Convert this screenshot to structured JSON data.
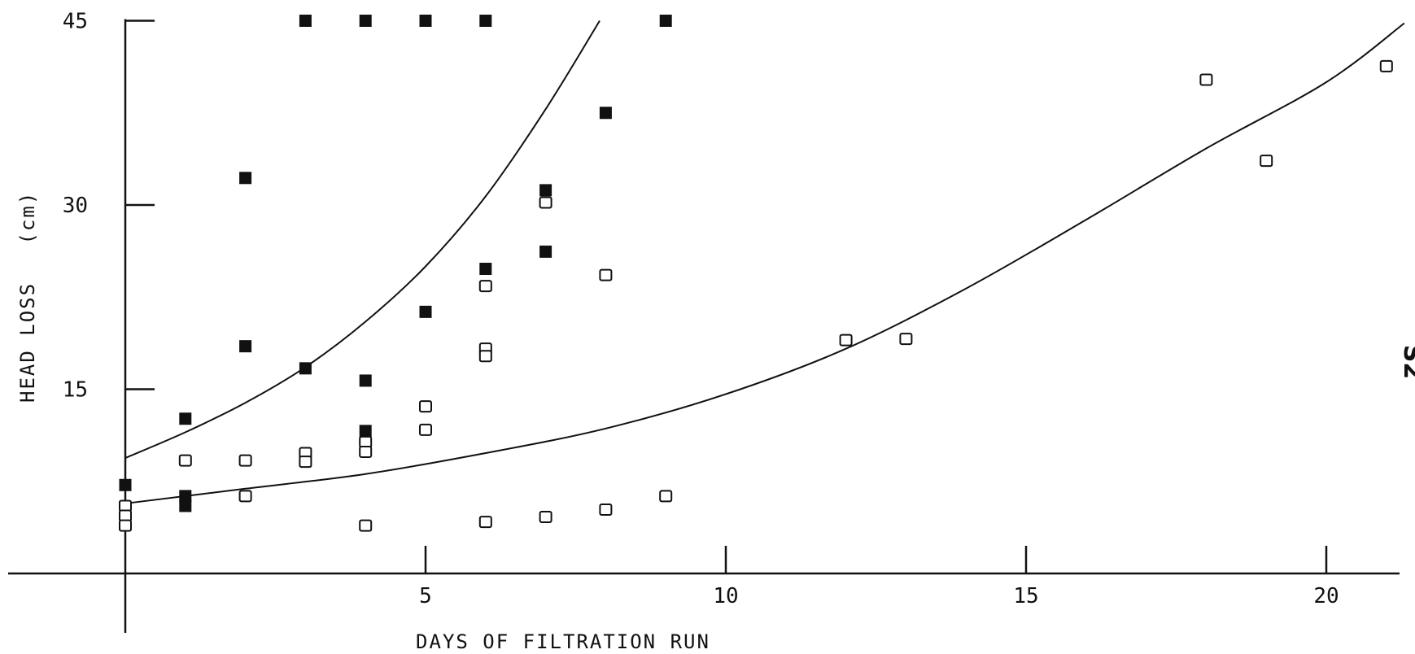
{
  "chart_data": {
    "type": "scatter",
    "title": "",
    "xlabel": "DAYS OF FILTRATION RUN",
    "ylabel": "HEAD LOSS",
    "ylabel_unit": "(cm)",
    "xlim": [
      0,
      20
    ],
    "ylim": [
      0,
      45
    ],
    "x_ticks": [
      5,
      10,
      15,
      20
    ],
    "x_tick_labels": [
      "5",
      "10",
      "15",
      "20"
    ],
    "y_ticks": [
      15,
      30,
      45
    ],
    "y_tick_labels": [
      "15",
      "30",
      "45"
    ],
    "grid": false,
    "legend": "none",
    "side_mark": "S2",
    "series": [
      {
        "marker": "filled-square",
        "points": [
          {
            "x": 0,
            "y": 7.2
          },
          {
            "x": 1,
            "y": 12.6
          },
          {
            "x": 1,
            "y": 6.3
          },
          {
            "x": 1,
            "y": 5.5
          },
          {
            "x": 2,
            "y": 32.2
          },
          {
            "x": 2,
            "y": 18.5
          },
          {
            "x": 3,
            "y": 45
          },
          {
            "x": 3,
            "y": 16.7
          },
          {
            "x": 4,
            "y": 45
          },
          {
            "x": 4,
            "y": 15.7
          },
          {
            "x": 4,
            "y": 11.6
          },
          {
            "x": 5,
            "y": 45
          },
          {
            "x": 5,
            "y": 21.3
          },
          {
            "x": 6,
            "y": 45
          },
          {
            "x": 6,
            "y": 24.8
          },
          {
            "x": 7,
            "y": 31.2
          },
          {
            "x": 7,
            "y": 26.2
          },
          {
            "x": 8,
            "y": 37.5
          },
          {
            "x": 9,
            "y": 45
          }
        ]
      },
      {
        "marker": "open-square",
        "points": [
          {
            "x": 0,
            "y": 5.5
          },
          {
            "x": 0,
            "y": 4.7
          },
          {
            "x": 0,
            "y": 3.9
          },
          {
            "x": 1,
            "y": 9.2
          },
          {
            "x": 2,
            "y": 9.2
          },
          {
            "x": 2,
            "y": 6.3
          },
          {
            "x": 3,
            "y": 9.8
          },
          {
            "x": 3,
            "y": 9.1
          },
          {
            "x": 4,
            "y": 10.7
          },
          {
            "x": 4,
            "y": 9.9
          },
          {
            "x": 4,
            "y": 3.9
          },
          {
            "x": 5,
            "y": 13.6
          },
          {
            "x": 5,
            "y": 11.7
          },
          {
            "x": 6,
            "y": 23.4
          },
          {
            "x": 6,
            "y": 18.3
          },
          {
            "x": 6,
            "y": 17.7
          },
          {
            "x": 6,
            "y": 4.2
          },
          {
            "x": 7,
            "y": 30.2
          },
          {
            "x": 7,
            "y": 4.6
          },
          {
            "x": 8,
            "y": 24.3
          },
          {
            "x": 8,
            "y": 5.2
          },
          {
            "x": 9,
            "y": 6.3
          },
          {
            "x": 12,
            "y": 19.0
          },
          {
            "x": 13,
            "y": 19.1
          },
          {
            "x": 18,
            "y": 40.2
          },
          {
            "x": 19,
            "y": 33.6
          },
          {
            "x": 21,
            "y": 41.3
          }
        ]
      }
    ],
    "curves": [
      {
        "style": "fitted-curve",
        "points": [
          [
            0,
            9.4
          ],
          [
            1,
            11.5
          ],
          [
            2,
            13.9
          ],
          [
            3,
            16.8
          ],
          [
            4,
            20.5
          ],
          [
            5,
            25.0
          ],
          [
            6,
            30.7
          ],
          [
            7,
            37.8
          ],
          [
            7.9,
            45
          ]
        ]
      },
      {
        "style": "fitted-curve",
        "points": [
          [
            0,
            5.7
          ],
          [
            2,
            6.9
          ],
          [
            4,
            8.1
          ],
          [
            6,
            9.8
          ],
          [
            8,
            11.8
          ],
          [
            10,
            14.6
          ],
          [
            12,
            18.3
          ],
          [
            14,
            23.2
          ],
          [
            16,
            28.8
          ],
          [
            18,
            34.6
          ],
          [
            20,
            40.0
          ],
          [
            21.3,
            44.8
          ]
        ]
      }
    ]
  }
}
